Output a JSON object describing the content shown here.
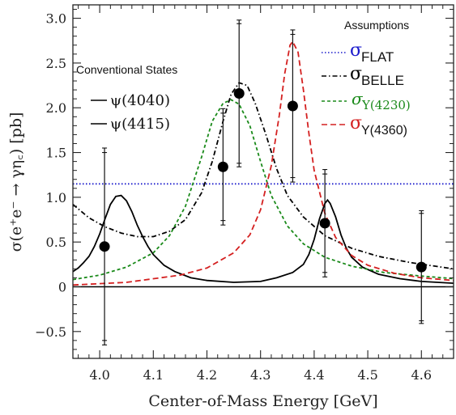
{
  "chart_data": {
    "type": "line",
    "xlabel": "Center-of-Mass Energy [GeV]",
    "ylabel": "σ(e⁺e⁻ → γη꜀) [pb]",
    "xlim": [
      3.95,
      4.66
    ],
    "ylim": [
      -0.8,
      3.15
    ],
    "x_ticks": [
      4.0,
      4.1,
      4.2,
      4.3,
      4.4,
      4.5,
      4.6
    ],
    "x_tick_labels": [
      "4.0",
      "4.1",
      "4.2",
      "4.3",
      "4.4",
      "4.5",
      "4.6"
    ],
    "y_ticks": [
      -0.5,
      0,
      0.5,
      1.0,
      1.5,
      2.0,
      2.5,
      3.0
    ],
    "y_tick_labels": [
      "−0.5",
      "0",
      "0.5",
      "1.0",
      "1.5",
      "2.0",
      "2.5",
      "3.0"
    ],
    "grid": false,
    "legend_left": {
      "title": "Conventional States",
      "entries": [
        {
          "label": "ψ(4040)",
          "color": "#000000",
          "dash": "solid"
        },
        {
          "label": "ψ(4415)",
          "color": "#000000",
          "dash": "solid"
        }
      ]
    },
    "legend_right": {
      "title": "Assumptions",
      "entries": [
        {
          "symbol": "σ",
          "sub": "FLAT",
          "color": "#1a1acc",
          "dash": "dotted"
        },
        {
          "symbol": "σ",
          "sub": "BELLE",
          "color": "#000000",
          "dash": "dashdot"
        },
        {
          "symbol": "σ",
          "sub": "Y(4230)",
          "color": "#1a8a1a",
          "dash": "dashed"
        },
        {
          "symbol": "σ",
          "sub": "Y(4360)",
          "color": "#d42020",
          "dash": "dashed"
        }
      ]
    },
    "data_points": [
      {
        "x": 4.009,
        "y": 0.45,
        "err_stat": 1.05,
        "err_tot": 1.1
      },
      {
        "x": 4.23,
        "y": 1.34,
        "err_stat": 0.6,
        "err_tot": 0.65
      },
      {
        "x": 4.26,
        "y": 2.16,
        "err_stat": 0.78,
        "err_tot": 0.82
      },
      {
        "x": 4.36,
        "y": 2.02,
        "err_stat": 0.8,
        "err_tot": 0.85
      },
      {
        "x": 4.42,
        "y": 0.71,
        "err_stat": 0.55,
        "err_tot": 0.6
      },
      {
        "x": 4.6,
        "y": 0.22,
        "err_stat": 0.6,
        "err_tot": 0.63
      }
    ],
    "series": [
      {
        "id": "conventional",
        "color": "#000000",
        "dash": "solid",
        "points": [
          [
            3.95,
            0.17
          ],
          [
            3.96,
            0.21
          ],
          [
            3.97,
            0.27
          ],
          [
            3.98,
            0.34
          ],
          [
            3.99,
            0.45
          ],
          [
            4.0,
            0.59
          ],
          [
            4.01,
            0.76
          ],
          [
            4.02,
            0.92
          ],
          [
            4.03,
            1.01
          ],
          [
            4.04,
            1.02
          ],
          [
            4.05,
            0.96
          ],
          [
            4.06,
            0.84
          ],
          [
            4.07,
            0.69
          ],
          [
            4.08,
            0.56
          ],
          [
            4.09,
            0.45
          ],
          [
            4.1,
            0.36
          ],
          [
            4.12,
            0.24
          ],
          [
            4.14,
            0.17
          ],
          [
            4.17,
            0.1
          ],
          [
            4.2,
            0.07
          ],
          [
            4.25,
            0.05
          ],
          [
            4.3,
            0.06
          ],
          [
            4.33,
            0.1
          ],
          [
            4.36,
            0.16
          ],
          [
            4.38,
            0.25
          ],
          [
            4.39,
            0.36
          ],
          [
            4.4,
            0.53
          ],
          [
            4.41,
            0.76
          ],
          [
            4.42,
            0.93
          ],
          [
            4.425,
            0.97
          ],
          [
            4.43,
            0.93
          ],
          [
            4.44,
            0.78
          ],
          [
            4.45,
            0.58
          ],
          [
            4.46,
            0.43
          ],
          [
            4.47,
            0.33
          ],
          [
            4.49,
            0.22
          ],
          [
            4.52,
            0.14
          ],
          [
            4.56,
            0.09
          ],
          [
            4.6,
            0.06
          ],
          [
            4.66,
            0.04
          ]
        ]
      },
      {
        "id": "baseline",
        "color": "#000000",
        "dash": "solid",
        "points": [
          [
            3.95,
            0.0
          ],
          [
            4.66,
            0.0
          ]
        ]
      },
      {
        "id": "flat",
        "color": "#1a1acc",
        "dash": "dotted",
        "points": [
          [
            3.95,
            1.15
          ],
          [
            4.66,
            1.15
          ]
        ]
      },
      {
        "id": "belle",
        "color": "#000000",
        "dash": "dashdot",
        "points": [
          [
            3.95,
            0.92
          ],
          [
            3.98,
            0.77
          ],
          [
            4.01,
            0.67
          ],
          [
            4.04,
            0.6
          ],
          [
            4.07,
            0.56
          ],
          [
            4.1,
            0.56
          ],
          [
            4.13,
            0.62
          ],
          [
            4.16,
            0.75
          ],
          [
            4.19,
            1.05
          ],
          [
            4.21,
            1.4
          ],
          [
            4.23,
            1.85
          ],
          [
            4.245,
            2.15
          ],
          [
            4.26,
            2.28
          ],
          [
            4.275,
            2.25
          ],
          [
            4.29,
            2.05
          ],
          [
            4.31,
            1.7
          ],
          [
            4.33,
            1.32
          ],
          [
            4.35,
            1.02
          ],
          [
            4.38,
            0.78
          ],
          [
            4.42,
            0.57
          ],
          [
            4.47,
            0.43
          ],
          [
            4.52,
            0.34
          ],
          [
            4.58,
            0.27
          ],
          [
            4.66,
            0.2
          ]
        ]
      },
      {
        "id": "y4230",
        "color": "#1a8a1a",
        "dash": "dashed",
        "points": [
          [
            3.95,
            0.08
          ],
          [
            4.0,
            0.13
          ],
          [
            4.05,
            0.22
          ],
          [
            4.1,
            0.38
          ],
          [
            4.13,
            0.57
          ],
          [
            4.16,
            0.9
          ],
          [
            4.19,
            1.45
          ],
          [
            4.21,
            1.85
          ],
          [
            4.23,
            2.05
          ],
          [
            4.245,
            2.09
          ],
          [
            4.26,
            2.04
          ],
          [
            4.28,
            1.8
          ],
          [
            4.3,
            1.4
          ],
          [
            4.32,
            1.02
          ],
          [
            4.35,
            0.68
          ],
          [
            4.38,
            0.48
          ],
          [
            4.42,
            0.33
          ],
          [
            4.47,
            0.23
          ],
          [
            4.53,
            0.16
          ],
          [
            4.6,
            0.12
          ],
          [
            4.66,
            0.09
          ]
        ]
      },
      {
        "id": "y4360",
        "color": "#d42020",
        "dash": "dashed",
        "points": [
          [
            3.95,
            0.02
          ],
          [
            4.05,
            0.05
          ],
          [
            4.15,
            0.13
          ],
          [
            4.2,
            0.21
          ],
          [
            4.25,
            0.38
          ],
          [
            4.28,
            0.58
          ],
          [
            4.3,
            0.86
          ],
          [
            4.32,
            1.35
          ],
          [
            4.335,
            1.92
          ],
          [
            4.345,
            2.38
          ],
          [
            4.355,
            2.7
          ],
          [
            4.36,
            2.74
          ],
          [
            4.37,
            2.62
          ],
          [
            4.38,
            2.2
          ],
          [
            4.39,
            1.72
          ],
          [
            4.4,
            1.3
          ],
          [
            4.42,
            0.82
          ],
          [
            4.44,
            0.55
          ],
          [
            4.47,
            0.35
          ],
          [
            4.5,
            0.24
          ],
          [
            4.55,
            0.15
          ],
          [
            4.6,
            0.1
          ],
          [
            4.66,
            0.07
          ]
        ]
      }
    ]
  }
}
